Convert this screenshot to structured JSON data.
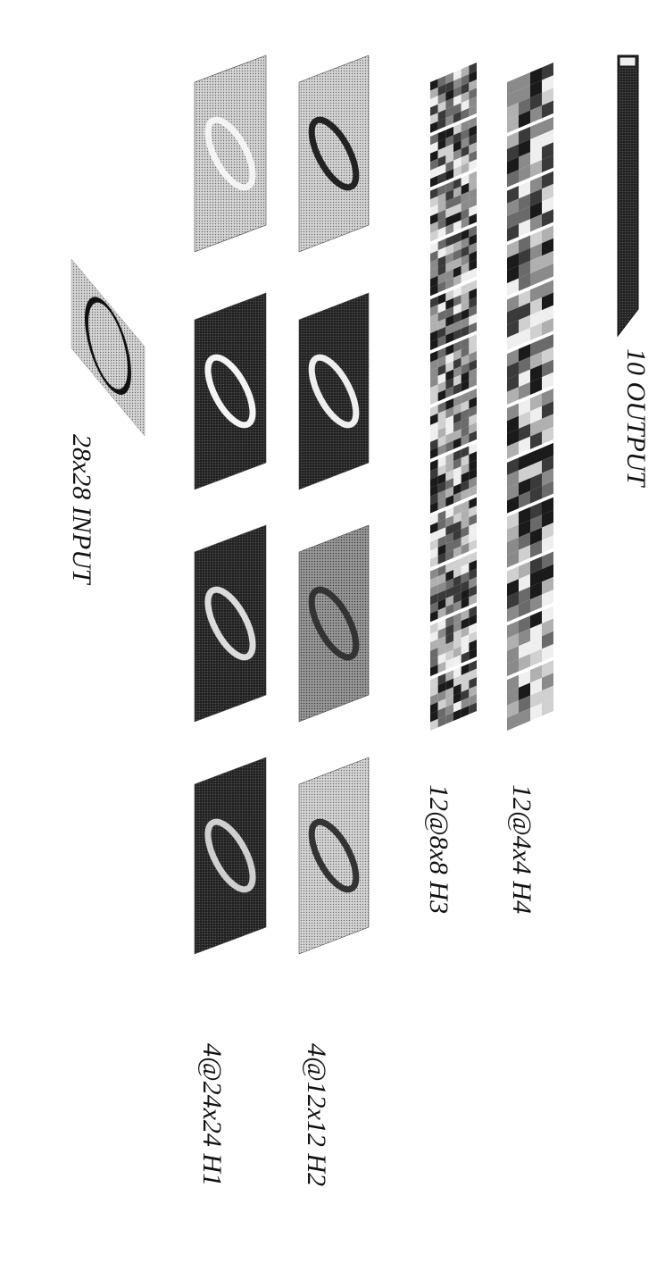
{
  "figure": {
    "labels": {
      "output": "10 OUTPUT",
      "h4": "12@4x4 H4",
      "h3": "12@8x8 H3",
      "h2": "4@12x12 H2",
      "h1": "4@24x24 H1",
      "input": "28x28 INPUT"
    },
    "colors": {
      "background": "#ffffff",
      "ink": "#111111",
      "map_dark": "#1a1a1a",
      "map_mid": "#8a8a8a",
      "map_light": "#cfcfcf",
      "stroke_white": "#f2f2f2"
    },
    "layers": [
      {
        "id": "output",
        "count": 1,
        "kind": "bar"
      },
      {
        "id": "h4",
        "count": 12,
        "kind": "patch-row"
      },
      {
        "id": "h3",
        "count": 12,
        "kind": "patch-row"
      },
      {
        "id": "h2",
        "count": 4,
        "kind": "map-row"
      },
      {
        "id": "h1",
        "count": 4,
        "kind": "map-row"
      },
      {
        "id": "input",
        "count": 1,
        "kind": "map"
      }
    ]
  }
}
